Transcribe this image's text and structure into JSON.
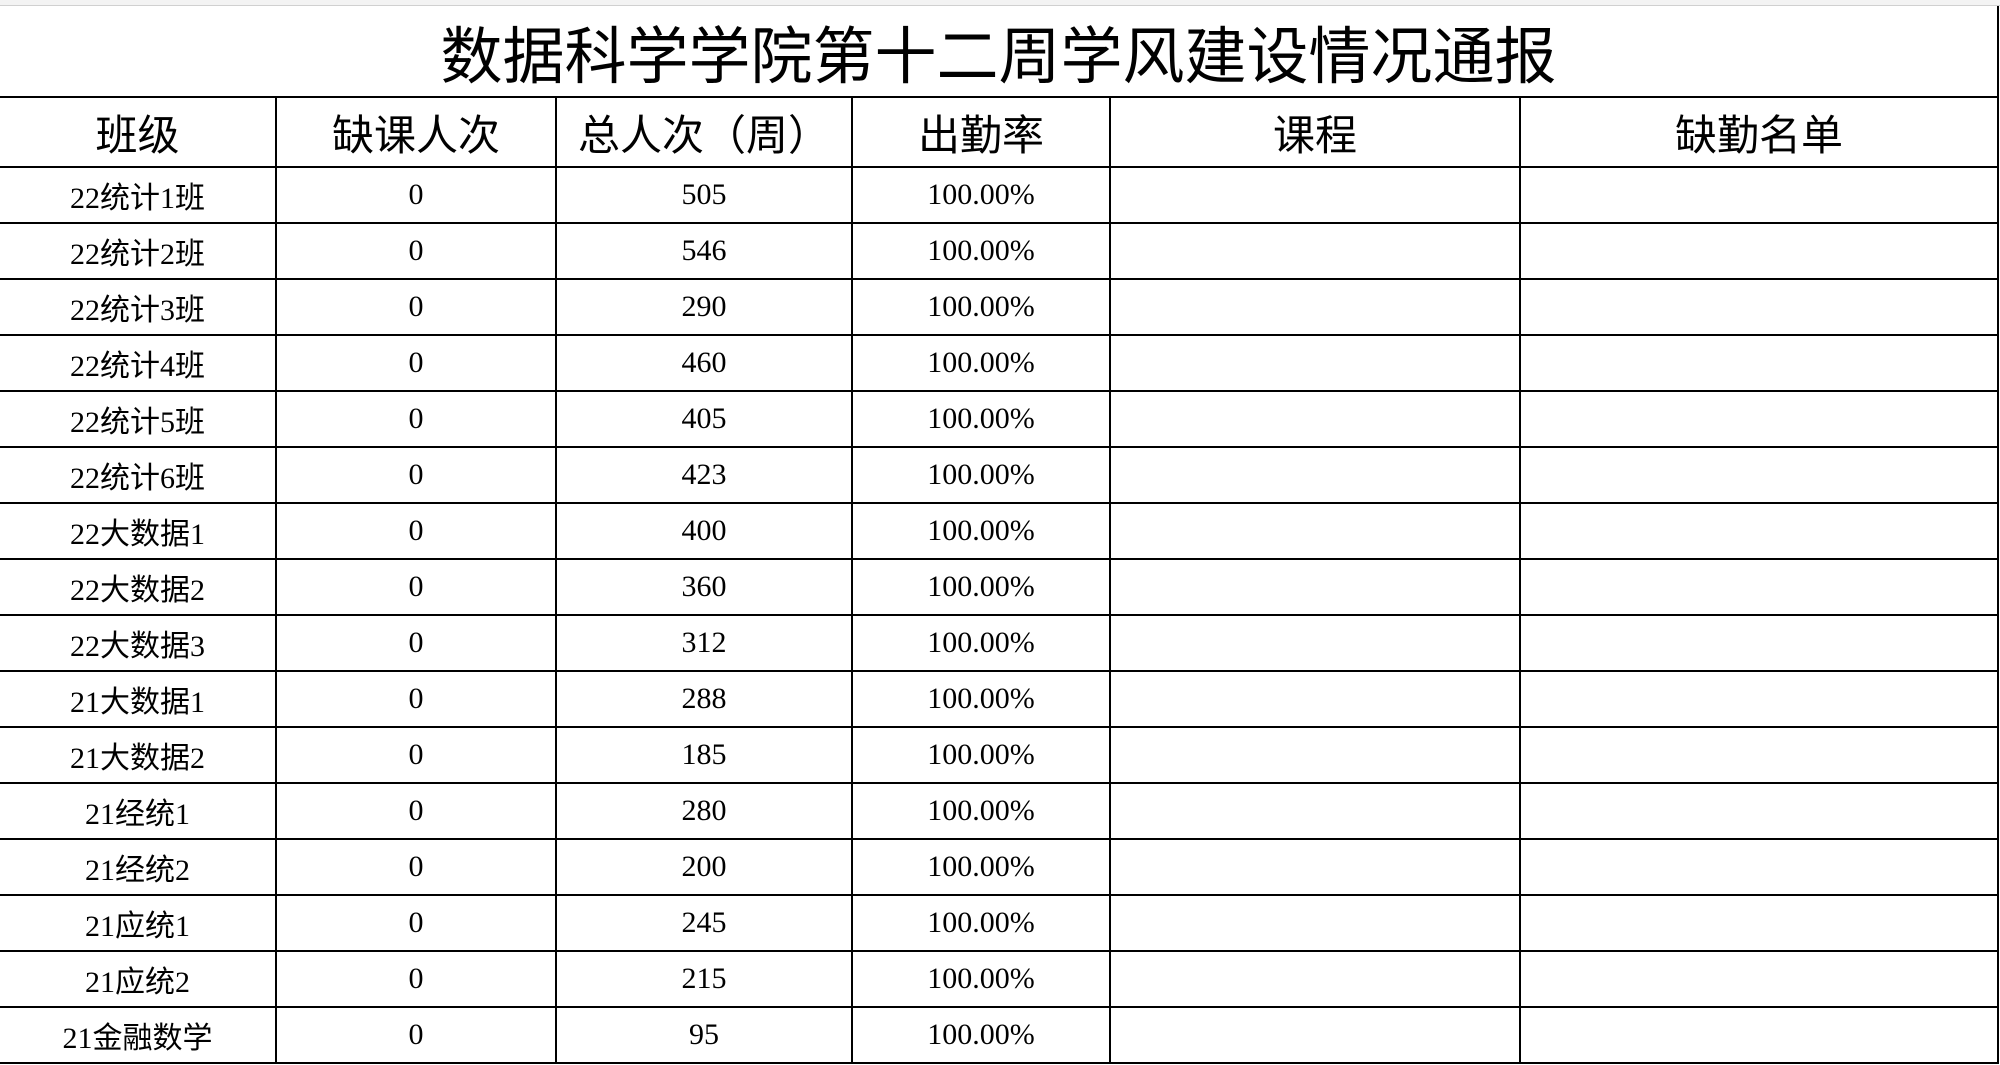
{
  "title": "数据科学学院第十二周学风建设情况通报",
  "columns": [
    "班级",
    "缺课人次",
    "总人次（周）",
    "出勤率",
    "课程",
    "缺勤名单"
  ],
  "rows": [
    [
      "22统计1班",
      "0",
      "505",
      "100.00%",
      "",
      ""
    ],
    [
      "22统计2班",
      "0",
      "546",
      "100.00%",
      "",
      ""
    ],
    [
      "22统计3班",
      "0",
      "290",
      "100.00%",
      "",
      ""
    ],
    [
      "22统计4班",
      "0",
      "460",
      "100.00%",
      "",
      ""
    ],
    [
      "22统计5班",
      "0",
      "405",
      "100.00%",
      "",
      ""
    ],
    [
      "22统计6班",
      "0",
      "423",
      "100.00%",
      "",
      ""
    ],
    [
      "22大数据1",
      "0",
      "400",
      "100.00%",
      "",
      ""
    ],
    [
      "22大数据2",
      "0",
      "360",
      "100.00%",
      "",
      ""
    ],
    [
      "22大数据3",
      "0",
      "312",
      "100.00%",
      "",
      ""
    ],
    [
      "21大数据1",
      "0",
      "288",
      "100.00%",
      "",
      ""
    ],
    [
      "21大数据2",
      "0",
      "185",
      "100.00%",
      "",
      ""
    ],
    [
      "21经统1",
      "0",
      "280",
      "100.00%",
      "",
      ""
    ],
    [
      "21经统2",
      "0",
      "200",
      "100.00%",
      "",
      ""
    ],
    [
      "21应统1",
      "0",
      "245",
      "100.00%",
      "",
      ""
    ],
    [
      "21应统2",
      "0",
      "215",
      "100.00%",
      "",
      ""
    ],
    [
      "21金融数学",
      "0",
      "95",
      "100.00%",
      "",
      ""
    ]
  ]
}
